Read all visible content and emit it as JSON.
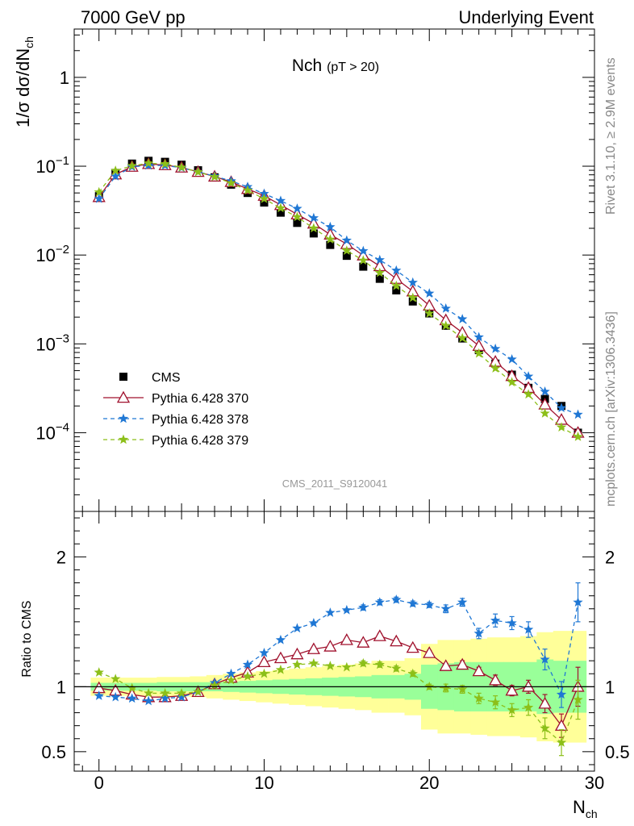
{
  "header": {
    "left": "7000 GeV pp",
    "right": "Underlying Event"
  },
  "side": {
    "rivet": "Rivet 3.1.10, ≥ 2.9M events",
    "source": "mcplots.cern.ch [arXiv:1306.3436]"
  },
  "chart_data": [
    {
      "type": "scatter",
      "panel": "main",
      "title": "Nch",
      "title_sub": "(pT > 20)",
      "ylabel": "1/σ dσ/dN",
      "ylabel_sub": "ch",
      "xlabel": "N",
      "xlabel_sub": "ch",
      "y_scale": "log",
      "xlim": [
        -1.5,
        30
      ],
      "ylim": [
        1.3e-05,
        3.5
      ],
      "y_ticks": [
        {
          "value": 1,
          "label": "1"
        },
        {
          "value": 0.1,
          "base": "10",
          "exp": "−1"
        },
        {
          "value": 0.01,
          "base": "10",
          "exp": "−2"
        },
        {
          "value": 0.001,
          "base": "10",
          "exp": "−3"
        },
        {
          "value": 0.0001,
          "base": "10",
          "exp": "−4"
        }
      ],
      "watermark": "CMS_2011_S9120041",
      "legend": {
        "position": "bottom-left"
      },
      "x": [
        0,
        1,
        2,
        3,
        4,
        5,
        6,
        7,
        8,
        9,
        10,
        11,
        12,
        13,
        14,
        15,
        16,
        17,
        18,
        19,
        20,
        21,
        22,
        23,
        24,
        25,
        26,
        27,
        28,
        29
      ],
      "series": [
        {
          "name": "CMS",
          "color": "#000000",
          "marker": "square",
          "values": [
            0.046,
            0.084,
            0.107,
            0.115,
            0.112,
            0.104,
            0.09,
            0.075,
            0.062,
            0.05,
            0.039,
            0.03,
            0.023,
            0.0175,
            0.013,
            0.0098,
            0.0074,
            0.0054,
            0.004,
            0.003,
            0.0022,
            0.0016,
            0.00115,
            0.00085,
            0.0006,
            0.00045,
            0.00032,
            0.00024,
            0.0002,
            0.0001
          ]
        },
        {
          "name": "Pythia 6.428 370",
          "color": "#a0112d",
          "marker": "triangle",
          "dash": "solid",
          "values": [
            0.045,
            0.081,
            0.0988,
            0.106,
            0.103,
            0.0967,
            0.0864,
            0.0765,
            0.0665,
            0.0555,
            0.0465,
            0.0366,
            0.0287,
            0.0226,
            0.017,
            0.0133,
            0.0099,
            0.0075,
            0.0054,
            0.0039,
            0.0027,
            0.00185,
            0.00134,
            0.00095,
            0.00063,
            0.000435,
            0.00032,
            0.000208,
            0.00014,
            0.0001
          ]
        },
        {
          "name": "Pythia 6.428 378",
          "color": "#1f77d4",
          "marker": "star",
          "dash": "dashed",
          "values": [
            0.043,
            0.077,
            0.0985,
            0.102,
            0.102,
            0.096,
            0.0864,
            0.0773,
            0.0682,
            0.0585,
            0.049,
            0.0408,
            0.0333,
            0.0261,
            0.0207,
            0.0146,
            0.0111,
            0.0088,
            0.0067,
            0.0049,
            0.0037,
            0.0025,
            0.0019,
            0.00119,
            0.00088,
            0.00067,
            0.00043,
            0.00029,
            0.00019,
            0.00016
          ]
        },
        {
          "name": "Pythia 6.428 379",
          "color": "#8cbf19",
          "marker": "star",
          "dash": "dashed",
          "values": [
            0.051,
            0.089,
            0.101,
            0.108,
            0.106,
            0.097,
            0.086,
            0.0758,
            0.0645,
            0.0535,
            0.0429,
            0.0337,
            0.0268,
            0.02,
            0.015,
            0.0112,
            0.0087,
            0.0063,
            0.0045,
            0.0033,
            0.0022,
            0.0016,
            0.00116,
            0.00078,
            0.00053,
            0.00037,
            0.00027,
            0.000165,
            0.000115,
            9e-05
          ]
        }
      ]
    },
    {
      "type": "scatter",
      "panel": "ratio",
      "ylabel": "Ratio to CMS",
      "xlim": [
        -1.5,
        30
      ],
      "ylim": [
        0.35,
        2.35
      ],
      "x_ticks": [
        0,
        10,
        20,
        30
      ],
      "y_ticks": [
        0.5,
        1,
        2
      ],
      "reference": 1,
      "x": [
        0,
        1,
        2,
        3,
        4,
        5,
        6,
        7,
        8,
        9,
        10,
        11,
        12,
        13,
        14,
        15,
        16,
        17,
        18,
        19,
        20,
        21,
        22,
        23,
        24,
        25,
        26,
        27,
        28,
        29
      ],
      "band_stat": [
        0.03,
        0.03,
        0.03,
        0.03,
        0.035,
        0.035,
        0.035,
        0.035,
        0.04,
        0.045,
        0.05,
        0.055,
        0.06,
        0.065,
        0.07,
        0.075,
        0.08,
        0.09,
        0.09,
        0.1,
        0.17,
        0.18,
        0.19,
        0.19,
        0.19,
        0.19,
        0.19,
        0.21,
        0.2,
        0.2
      ],
      "band_total": [
        0.07,
        0.07,
        0.07,
        0.07,
        0.075,
        0.075,
        0.08,
        0.09,
        0.1,
        0.11,
        0.12,
        0.13,
        0.14,
        0.15,
        0.16,
        0.17,
        0.18,
        0.2,
        0.2,
        0.22,
        0.33,
        0.36,
        0.36,
        0.37,
        0.38,
        0.38,
        0.39,
        0.42,
        0.43,
        0.43
      ],
      "series": [
        {
          "name": "Pythia 6.428 370",
          "color": "#a0112d",
          "values": [
            0.99,
            0.97,
            0.94,
            0.92,
            0.92,
            0.93,
            0.96,
            1.02,
            1.07,
            1.11,
            1.19,
            1.22,
            1.25,
            1.29,
            1.31,
            1.36,
            1.34,
            1.39,
            1.35,
            1.3,
            1.26,
            1.16,
            1.17,
            1.12,
            1.05,
            0.97,
            1.0,
            0.87,
            0.7,
            1.0
          ],
          "errors": [
            0.01,
            0.01,
            0.01,
            0.01,
            0.01,
            0.01,
            0.01,
            0.01,
            0.01,
            0.01,
            0.01,
            0.01,
            0.01,
            0.01,
            0.01,
            0.01,
            0.02,
            0.02,
            0.02,
            0.02,
            0.02,
            0.02,
            0.03,
            0.03,
            0.04,
            0.04,
            0.05,
            0.07,
            0.09,
            0.15
          ]
        },
        {
          "name": "Pythia 6.428 378",
          "color": "#1f77d4",
          "values": [
            0.93,
            0.92,
            0.91,
            0.89,
            0.91,
            0.92,
            0.96,
            1.03,
            1.1,
            1.17,
            1.26,
            1.36,
            1.45,
            1.49,
            1.57,
            1.59,
            1.61,
            1.65,
            1.67,
            1.64,
            1.63,
            1.6,
            1.65,
            1.41,
            1.51,
            1.49,
            1.44,
            1.21,
            0.94,
            1.65
          ],
          "errors": [
            0.01,
            0.01,
            0.01,
            0.01,
            0.01,
            0.01,
            0.01,
            0.01,
            0.01,
            0.01,
            0.01,
            0.01,
            0.01,
            0.01,
            0.01,
            0.01,
            0.02,
            0.02,
            0.02,
            0.02,
            0.02,
            0.03,
            0.03,
            0.04,
            0.05,
            0.05,
            0.06,
            0.08,
            0.1,
            0.15
          ]
        },
        {
          "name": "Pythia 6.428 379",
          "color": "#8cbf19",
          "values": [
            1.11,
            1.06,
            0.99,
            0.95,
            0.95,
            0.95,
            0.96,
            1.01,
            1.05,
            1.08,
            1.1,
            1.13,
            1.17,
            1.18,
            1.16,
            1.15,
            1.18,
            1.17,
            1.14,
            1.1,
            1.0,
            0.99,
            0.98,
            0.91,
            0.88,
            0.82,
            0.84,
            0.68,
            0.57,
            0.9
          ],
          "errors": [
            0.01,
            0.01,
            0.01,
            0.01,
            0.01,
            0.01,
            0.01,
            0.01,
            0.01,
            0.01,
            0.01,
            0.01,
            0.01,
            0.01,
            0.01,
            0.01,
            0.02,
            0.02,
            0.02,
            0.02,
            0.02,
            0.03,
            0.03,
            0.04,
            0.05,
            0.05,
            0.06,
            0.08,
            0.1,
            0.15
          ]
        }
      ]
    }
  ]
}
